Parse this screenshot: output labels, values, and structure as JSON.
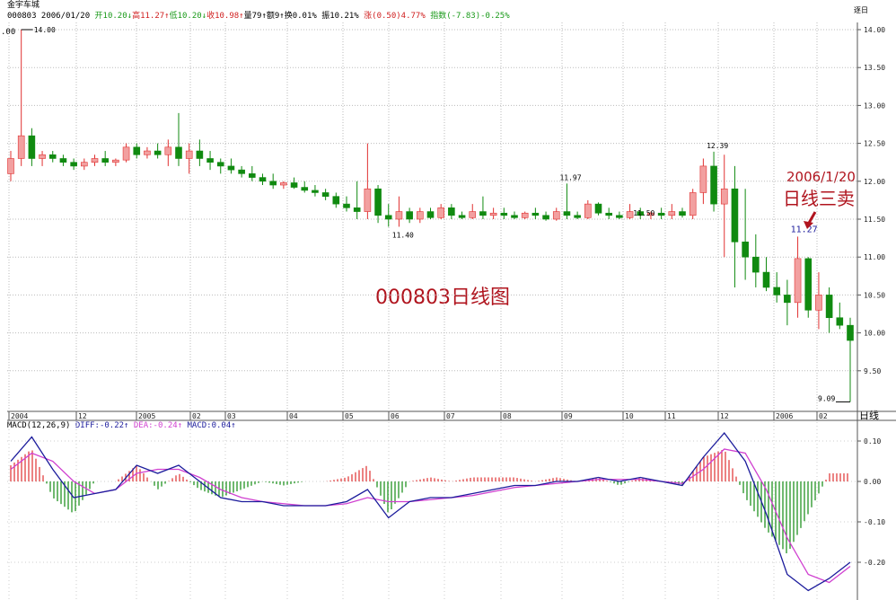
{
  "header": {
    "stock_name": "金宇车城",
    "segments": [
      {
        "text": "000803 2006/01/20 ",
        "color": "#000000"
      },
      {
        "text": "开10.20↓",
        "color": "#1a9a1a"
      },
      {
        "text": "高11.27↑",
        "color": "#d02020"
      },
      {
        "text": "低10.20↓",
        "color": "#1a9a1a"
      },
      {
        "text": "收10.98↑",
        "color": "#d02020"
      },
      {
        "text": "量79↑额9↑换0.01% 振10.21% ",
        "color": "#000000"
      },
      {
        "text": "涨(0.50)4.77% ",
        "color": "#d02020"
      },
      {
        "text": "指数(-7.83)-0.25%",
        "color": "#1a9a1a"
      }
    ],
    "corner_label": "逐日",
    "left_cut_label": ".00"
  },
  "annotations": {
    "chart_title": "000803日线图",
    "date": "2006/1/20",
    "signal": "日线三卖"
  },
  "period_label": "日线",
  "macd_header": {
    "name": "MACD(12,26,9) ",
    "diff": "DIFF:-0.22↑",
    "dea": " DEA:-0.24↑",
    "macd": " MACD:0.04↑"
  },
  "colors": {
    "up": "#e03030",
    "down": "#108a10",
    "diff": "#1c1c9c",
    "dea": "#d040d0",
    "annotation": "#b0141e"
  },
  "chart_data": [
    {
      "type": "candlestick",
      "ylim": [
        9.0,
        14.1
      ],
      "y_ticks": [
        "14.00",
        "13.50",
        "13.00",
        "12.50",
        "12.00",
        "11.50",
        "11.00",
        "10.50",
        "10.00",
        "9.50"
      ],
      "x_ticks": [
        "2004",
        "12",
        "2005",
        "02",
        "03",
        "04",
        "05",
        "06",
        "07",
        "08",
        "09",
        "10",
        "11",
        "12",
        "2006",
        "02"
      ],
      "grid": true,
      "candles_ohlc": [
        [
          12.1,
          12.4,
          12.0,
          12.3
        ],
        [
          12.3,
          14.0,
          12.2,
          12.6
        ],
        [
          12.6,
          12.7,
          12.2,
          12.3
        ],
        [
          12.3,
          12.4,
          12.2,
          12.35
        ],
        [
          12.35,
          12.4,
          12.25,
          12.3
        ],
        [
          12.3,
          12.35,
          12.2,
          12.25
        ],
        [
          12.25,
          12.3,
          12.15,
          12.2
        ],
        [
          12.2,
          12.3,
          12.15,
          12.25
        ],
        [
          12.25,
          12.35,
          12.2,
          12.3
        ],
        [
          12.3,
          12.4,
          12.2,
          12.25
        ],
        [
          12.25,
          12.3,
          12.2,
          12.28
        ],
        [
          12.28,
          12.5,
          12.25,
          12.45
        ],
        [
          12.45,
          12.5,
          12.3,
          12.35
        ],
        [
          12.35,
          12.45,
          12.3,
          12.4
        ],
        [
          12.4,
          12.5,
          12.3,
          12.35
        ],
        [
          12.35,
          12.55,
          12.2,
          12.45
        ],
        [
          12.45,
          12.9,
          12.2,
          12.3
        ],
        [
          12.3,
          12.5,
          12.1,
          12.4
        ],
        [
          12.4,
          12.55,
          12.2,
          12.3
        ],
        [
          12.3,
          12.4,
          12.15,
          12.25
        ],
        [
          12.25,
          12.3,
          12.1,
          12.2
        ],
        [
          12.2,
          12.3,
          12.1,
          12.15
        ],
        [
          12.15,
          12.2,
          12.05,
          12.1
        ],
        [
          12.1,
          12.2,
          12.0,
          12.05
        ],
        [
          12.05,
          12.1,
          11.95,
          12.0
        ],
        [
          12.0,
          12.1,
          11.9,
          11.95
        ],
        [
          11.95,
          12.0,
          11.9,
          11.98
        ],
        [
          11.98,
          12.05,
          11.9,
          11.92
        ],
        [
          11.92,
          12.0,
          11.85,
          11.88
        ],
        [
          11.88,
          11.95,
          11.8,
          11.85
        ],
        [
          11.85,
          11.9,
          11.75,
          11.8
        ],
        [
          11.8,
          11.85,
          11.65,
          11.7
        ],
        [
          11.7,
          11.8,
          11.6,
          11.65
        ],
        [
          11.65,
          12.0,
          11.5,
          11.6
        ],
        [
          11.6,
          12.5,
          11.5,
          11.9
        ],
        [
          11.9,
          11.95,
          11.45,
          11.55
        ],
        [
          11.55,
          11.7,
          11.4,
          11.5
        ],
        [
          11.5,
          11.8,
          11.4,
          11.6
        ],
        [
          11.6,
          11.65,
          11.45,
          11.5
        ],
        [
          11.5,
          11.65,
          11.45,
          11.6
        ],
        [
          11.6,
          11.65,
          11.5,
          11.52
        ],
        [
          11.52,
          11.7,
          11.5,
          11.65
        ],
        [
          11.65,
          11.7,
          11.5,
          11.55
        ],
        [
          11.55,
          11.6,
          11.5,
          11.52
        ],
        [
          11.52,
          11.7,
          11.5,
          11.6
        ],
        [
          11.6,
          11.8,
          11.5,
          11.55
        ],
        [
          11.55,
          11.65,
          11.5,
          11.58
        ],
        [
          11.58,
          11.65,
          11.5,
          11.55
        ],
        [
          11.55,
          11.6,
          11.5,
          11.52
        ],
        [
          11.52,
          11.6,
          11.5,
          11.58
        ],
        [
          11.58,
          11.65,
          11.5,
          11.55
        ],
        [
          11.55,
          11.6,
          11.48,
          11.5
        ],
        [
          11.5,
          11.65,
          11.48,
          11.6
        ],
        [
          11.6,
          11.97,
          11.5,
          11.55
        ],
        [
          11.55,
          11.6,
          11.5,
          11.52
        ],
        [
          11.52,
          11.75,
          11.5,
          11.7
        ],
        [
          11.7,
          11.72,
          11.55,
          11.58
        ],
        [
          11.58,
          11.65,
          11.5,
          11.55
        ],
        [
          11.55,
          11.6,
          11.5,
          11.52
        ],
        [
          11.52,
          11.7,
          11.5,
          11.6
        ],
        [
          11.6,
          11.65,
          11.5,
          11.55
        ],
        [
          11.55,
          11.6,
          11.5,
          11.58
        ],
        [
          11.58,
          11.65,
          11.5,
          11.55
        ],
        [
          11.55,
          11.7,
          11.5,
          11.6
        ],
        [
          11.6,
          11.65,
          11.52,
          11.55
        ],
        [
          11.55,
          11.9,
          11.5,
          11.85
        ],
        [
          11.85,
          12.3,
          11.7,
          12.2
        ],
        [
          12.2,
          12.39,
          11.6,
          11.7
        ],
        [
          11.7,
          12.35,
          11.0,
          11.9
        ],
        [
          11.9,
          12.2,
          10.6,
          11.2
        ],
        [
          11.2,
          11.9,
          10.7,
          11.0
        ],
        [
          11.0,
          11.3,
          10.6,
          10.8
        ],
        [
          10.8,
          11.0,
          10.55,
          10.6
        ],
        [
          10.6,
          10.8,
          10.4,
          10.5
        ],
        [
          10.5,
          10.7,
          10.1,
          10.4
        ],
        [
          10.4,
          11.27,
          10.2,
          10.98
        ],
        [
          10.98,
          11.0,
          10.2,
          10.3
        ],
        [
          10.3,
          10.8,
          10.05,
          10.5
        ],
        [
          10.5,
          10.6,
          10.0,
          10.2
        ],
        [
          10.2,
          10.4,
          10.05,
          10.1
        ],
        [
          10.1,
          10.2,
          9.09,
          9.9
        ]
      ],
      "price_labels": [
        {
          "text": "14.00",
          "candle": 1,
          "value": 14.0
        },
        {
          "text": "12.39",
          "candle": 67,
          "value": 12.39
        },
        {
          "text": "11.97",
          "candle": 53,
          "value": 11.97
        },
        {
          "text": "11.40",
          "candle": 36,
          "value": 11.4
        },
        {
          "text": "11.50",
          "candle": 60,
          "value": 11.5
        },
        {
          "text": "11.27",
          "candle": 75,
          "value": 11.27
        },
        {
          "text": "9.09",
          "candle": 80,
          "value": 9.09
        }
      ]
    },
    {
      "type": "line",
      "title": "MACD(12,26,9)",
      "ylim": [
        -0.28,
        0.15
      ],
      "y_ticks": [
        "0.10",
        "0.00",
        "-0.10",
        "-0.20"
      ],
      "series": [
        {
          "name": "DIFF",
          "values": [
            0.05,
            0.11,
            0.03,
            -0.04,
            -0.03,
            -0.02,
            0.04,
            0.02,
            0.04,
            0.0,
            -0.04,
            -0.05,
            -0.05,
            -0.06,
            -0.06,
            -0.06,
            -0.05,
            -0.02,
            -0.09,
            -0.05,
            -0.04,
            -0.04,
            -0.03,
            -0.02,
            -0.01,
            -0.01,
            0.0,
            0.0,
            0.01,
            0.0,
            0.01,
            0.0,
            -0.01,
            0.06,
            0.12,
            0.05,
            -0.08,
            -0.23,
            -0.27,
            -0.24,
            -0.2
          ]
        },
        {
          "name": "DEA",
          "values": [
            0.03,
            0.07,
            0.05,
            0.0,
            -0.03,
            -0.02,
            0.02,
            0.03,
            0.03,
            0.01,
            -0.02,
            -0.04,
            -0.05,
            -0.055,
            -0.06,
            -0.06,
            -0.055,
            -0.04,
            -0.05,
            -0.05,
            -0.045,
            -0.04,
            -0.035,
            -0.025,
            -0.015,
            -0.01,
            -0.005,
            0.0,
            0.005,
            0.005,
            0.005,
            0.0,
            -0.005,
            0.03,
            0.08,
            0.07,
            -0.02,
            -0.14,
            -0.23,
            -0.25,
            -0.21
          ]
        }
      ]
    }
  ]
}
